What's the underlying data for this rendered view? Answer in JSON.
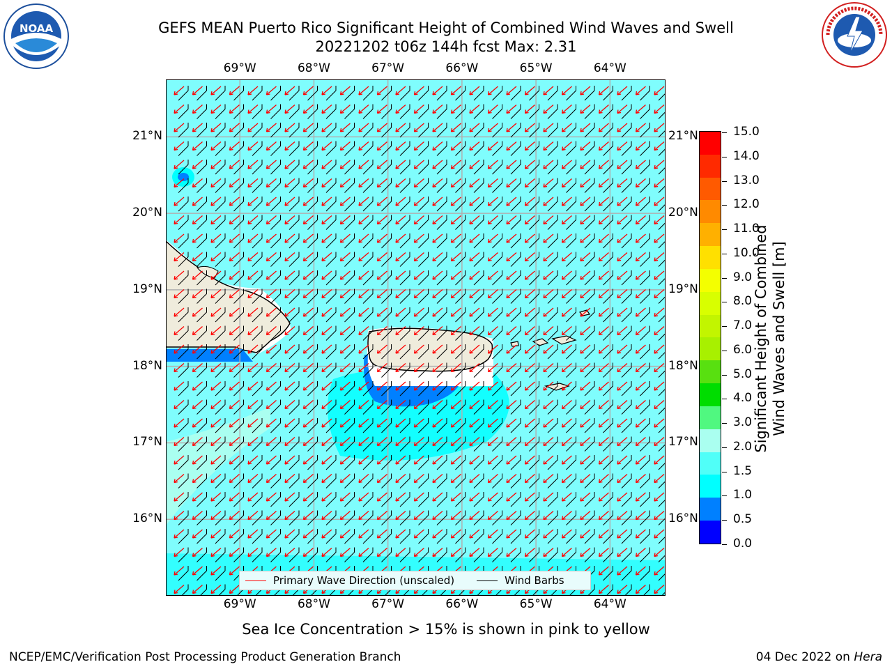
{
  "title": {
    "line1": "GEFS MEAN Puerto Rico Significant Height of Combined Wind Waves and Swell",
    "line2": "20221202 t06z 144h fcst   Max: 2.31"
  },
  "logos": {
    "left": {
      "icon": "noaa-logo",
      "text": "NOAA"
    },
    "right": {
      "icon": "nws-logo",
      "text": "NATIONAL WEATHER SERVICE"
    }
  },
  "map": {
    "lon_labels": [
      "69°W",
      "68°W",
      "67°W",
      "66°W",
      "65°W",
      "64°W"
    ],
    "lat_labels": [
      "21°N",
      "20°N",
      "19°N",
      "18°N",
      "17°N",
      "16°N"
    ],
    "lon_values": [
      -69,
      -68,
      -67,
      -66,
      -65,
      -64
    ],
    "lat_values": [
      21,
      20,
      19,
      18,
      17,
      16
    ],
    "extent": {
      "lon_min": -70,
      "lon_max": -63.25,
      "lat_min": 15,
      "lat_max": 21.75
    },
    "land_color": "#efecdc",
    "ocean_color": "#7ffdfd",
    "vector_color": "#ff0000",
    "barb_color": "#000000"
  },
  "legend": {
    "wave_label": "Primary Wave Direction (unscaled)",
    "barb_label": "Wind Barbs"
  },
  "colorbar": {
    "label": "Significant Height of Combined Wind Waves and Swell [m]",
    "label_line1": "Significant Height of Combined",
    "label_line2": "Wind Waves and Swell [m]",
    "ticks": [
      "15.0",
      "14.0",
      "13.0",
      "12.0",
      "11.0",
      "10.0",
      "9.0",
      "8.0",
      "7.0",
      "6.0",
      "5.0",
      "4.0",
      "3.0",
      "2.0",
      "1.5",
      "1.0",
      "0.5",
      "0.0"
    ],
    "colors_top_to_bottom": [
      "#ff0000",
      "#ff2a00",
      "#ff5a00",
      "#ff8a00",
      "#ffb000",
      "#ffe000",
      "#f4ff00",
      "#d8ff00",
      "#c2f500",
      "#a8f000",
      "#58e010",
      "#00dd00",
      "#50f880",
      "#aafff0",
      "#50fff8",
      "#00ffff",
      "#0080ff",
      "#0000ff"
    ]
  },
  "caption": "Sea Ice Concentration > 15% is shown in pink to yellow",
  "footer": {
    "left": "NCEP/EMC/Verification Post Processing Product Generation Branch",
    "right_date": "04 Dec 2022 on ",
    "right_machine": "Hera"
  }
}
